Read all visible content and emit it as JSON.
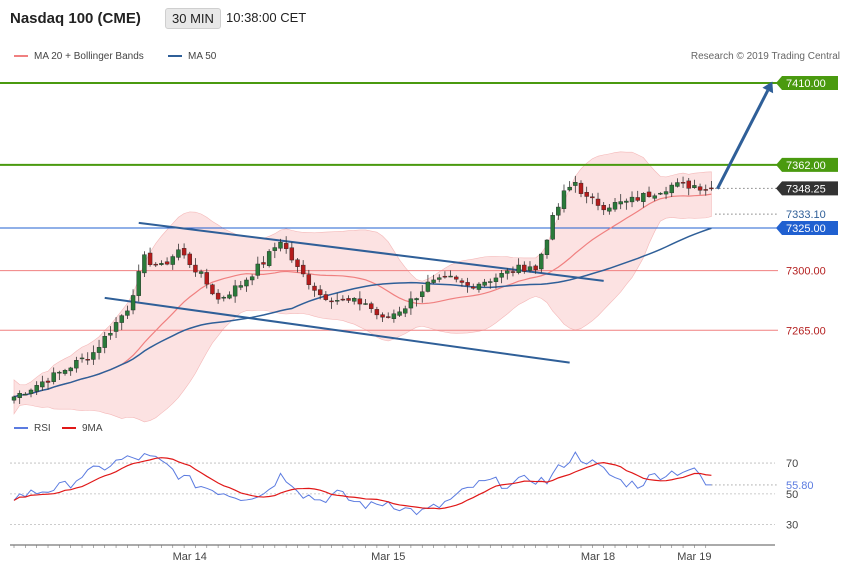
{
  "header": {
    "title": "Nasdaq 100 (CME)",
    "timeframe": "30 MIN",
    "time": "10:38:00 CET"
  },
  "legend": {
    "ma20_label": "MA 20 + Bollinger Bands",
    "ma50_label": "MA 50",
    "copyright": "Research © 2019 Trading Central"
  },
  "rsi_legend": {
    "rsi_label": "RSI",
    "ma_label": "9MA"
  },
  "colors": {
    "ma20": "#f08080",
    "ma50": "#2f5f98",
    "band": "#fbd8d8",
    "up_candle": "#2a7a3a",
    "down_candle": "#b51c1c",
    "green_level": "#4a9a0f",
    "blue_level": "#2060d0",
    "arrow": "#2f5f98",
    "rsi": "#5b7be0",
    "rsi_ma": "#e01818"
  },
  "chart_data": {
    "type": "candlestick",
    "price_axis": {
      "min": 7220,
      "max": 7420
    },
    "x_labels": [
      "Mar 14",
      "Mar 15",
      "Mar 18",
      "Mar 19"
    ],
    "x_label_positions": [
      31,
      66,
      103,
      120
    ],
    "bar_count": 124,
    "levels": [
      {
        "value": 7410.0,
        "label": "7410.00",
        "kind": "green"
      },
      {
        "value": 7362.0,
        "label": "7362.00",
        "kind": "green"
      },
      {
        "value": 7348.25,
        "label": "7348.25",
        "kind": "last"
      },
      {
        "value": 7333.1,
        "label": "7333.10",
        "kind": "ma"
      },
      {
        "value": 7325.0,
        "label": "7325.00",
        "kind": "blue"
      },
      {
        "value": 7300.0,
        "label": "7300.00",
        "kind": "red"
      },
      {
        "value": 7265.0,
        "label": "7265.00",
        "kind": "red"
      }
    ],
    "anchors": [
      [
        0,
        7226
      ],
      [
        8,
        7240
      ],
      [
        14,
        7252
      ],
      [
        20,
        7278
      ],
      [
        23,
        7307
      ],
      [
        26,
        7302
      ],
      [
        29,
        7312
      ],
      [
        33,
        7297
      ],
      [
        36,
        7283
      ],
      [
        40,
        7292
      ],
      [
        44,
        7305
      ],
      [
        47,
        7318
      ],
      [
        50,
        7301
      ],
      [
        54,
        7286
      ],
      [
        58,
        7282
      ],
      [
        62,
        7281
      ],
      [
        65,
        7271
      ],
      [
        69,
        7279
      ],
      [
        73,
        7292
      ],
      [
        77,
        7295
      ],
      [
        80,
        7291
      ],
      [
        84,
        7295
      ],
      [
        88,
        7300
      ],
      [
        91,
        7303
      ],
      [
        92,
        7300
      ],
      [
        95,
        7330
      ],
      [
        97,
        7345
      ],
      [
        99,
        7352
      ],
      [
        101,
        7342
      ],
      [
        104,
        7338
      ],
      [
        108,
        7340
      ],
      [
        112,
        7345
      ],
      [
        116,
        7350
      ],
      [
        120,
        7350
      ],
      [
        123,
        7348
      ]
    ],
    "channel": {
      "upper": [
        [
          22,
          7328
        ],
        [
          104,
          7294
        ]
      ],
      "lower": [
        [
          16,
          7284
        ],
        [
          98,
          7246
        ]
      ]
    },
    "arrow": {
      "from": [
        123,
        7348
      ],
      "to": [
        134,
        7408
      ]
    },
    "rsi": {
      "axis": {
        "min": 20,
        "max": 85
      },
      "ticks": [
        70,
        50,
        30
      ],
      "last_value": "55.80",
      "last_numeric": 55.8,
      "anchors": [
        [
          0,
          48
        ],
        [
          5,
          52
        ],
        [
          9,
          55
        ],
        [
          12,
          62
        ],
        [
          15,
          66
        ],
        [
          19,
          72
        ],
        [
          23,
          74
        ],
        [
          25,
          72
        ],
        [
          27,
          68
        ],
        [
          30,
          60
        ],
        [
          33,
          55
        ],
        [
          36,
          52
        ],
        [
          40,
          48
        ],
        [
          44,
          50
        ],
        [
          47,
          62
        ],
        [
          49,
          58
        ],
        [
          51,
          50
        ],
        [
          54,
          46
        ],
        [
          57,
          50
        ],
        [
          60,
          45
        ],
        [
          63,
          42
        ],
        [
          66,
          45
        ],
        [
          69,
          40
        ],
        [
          72,
          38
        ],
        [
          75,
          42
        ],
        [
          78,
          48
        ],
        [
          81,
          55
        ],
        [
          84,
          58
        ],
        [
          88,
          56
        ],
        [
          91,
          60
        ],
        [
          94,
          58
        ],
        [
          97,
          70
        ],
        [
          99,
          75
        ],
        [
          101,
          72
        ],
        [
          104,
          65
        ],
        [
          107,
          58
        ],
        [
          110,
          56
        ],
        [
          113,
          62
        ],
        [
          116,
          64
        ],
        [
          119,
          66
        ],
        [
          122,
          60
        ],
        [
          123,
          56
        ]
      ]
    }
  }
}
